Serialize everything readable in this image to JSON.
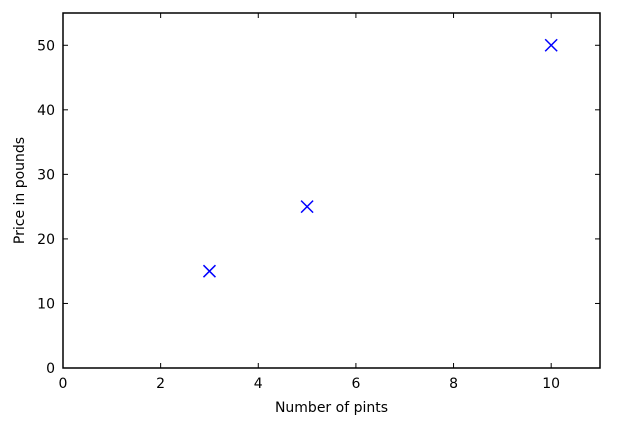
{
  "chart_data": {
    "type": "scatter",
    "title": "",
    "xlabel": "Number of pints",
    "ylabel": "Price in pounds",
    "xlim": [
      0,
      11
    ],
    "ylim": [
      0,
      55
    ],
    "xticks": [
      0,
      2,
      4,
      6,
      8,
      10
    ],
    "yticks": [
      0,
      10,
      20,
      30,
      40,
      50
    ],
    "grid": false,
    "legend": "none",
    "marker": "x",
    "color": "#0000ff",
    "series": [
      {
        "points": [
          {
            "x": 3,
            "y": 15
          },
          {
            "x": 5,
            "y": 25
          },
          {
            "x": 10,
            "y": 50
          }
        ]
      }
    ]
  }
}
